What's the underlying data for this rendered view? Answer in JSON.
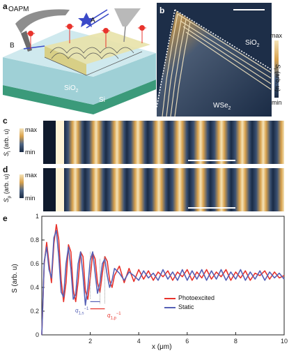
{
  "panel_labels": {
    "a": "a",
    "b": "b",
    "c": "c",
    "d": "d",
    "e": "e"
  },
  "panel_a": {
    "oapm": "OAPM",
    "beam_a": "A",
    "beam_b": "B",
    "sio2": "SiO",
    "sio2_sub": "2",
    "si": "Si"
  },
  "panel_b": {
    "sio2": "SiO",
    "sio2_sub": "2",
    "wse2": "WSe",
    "wse2_sub": "2",
    "cbar_max": "max",
    "cbar_min": "min",
    "cbar_label": "S",
    "cbar_label_sub": "I",
    "cbar_label_rest": " (arb. u)"
  },
  "panel_c": {
    "ylabel": "S",
    "ylabel_sub": "I",
    "ylabel_rest": " (arb. u)",
    "max": "max",
    "min": "min"
  },
  "panel_d": {
    "ylabel": "S",
    "ylabel_sub": "p",
    "ylabel_rest": " (arb. u)",
    "max": "max",
    "min": "min"
  },
  "colors": {
    "photoexcited": "#e8332c",
    "static": "#5560b5",
    "map_dark": "#1a2b45",
    "map_light": "#f4e3b8",
    "map_orange": "#d9a24d",
    "substrate_si": "#3b9a7a",
    "substrate_sio2": "#9fd0d6"
  },
  "chart_data": {
    "type": "line",
    "ylabel": "S (arb. u)",
    "xlabel": "x (μm)",
    "xlim": [
      0,
      10
    ],
    "ylim": [
      0,
      1
    ],
    "x_ticks": [
      "2",
      "4",
      "6",
      "8",
      "10"
    ],
    "y_ticks": [
      "0",
      "0.2",
      "0.4",
      "0.6",
      "0.8",
      "1"
    ],
    "series": [
      {
        "name": "Photoexcited",
        "x": [
          0.0,
          0.1,
          0.2,
          0.3,
          0.4,
          0.5,
          0.6,
          0.7,
          0.8,
          0.9,
          1.0,
          1.1,
          1.2,
          1.3,
          1.4,
          1.5,
          1.6,
          1.7,
          1.8,
          1.9,
          2.0,
          2.1,
          2.2,
          2.3,
          2.4,
          2.5,
          2.6,
          2.7,
          2.8,
          2.9,
          3.0,
          3.2,
          3.4,
          3.6,
          3.8,
          4.0,
          4.2,
          4.4,
          4.6,
          4.8,
          5.0,
          5.2,
          5.4,
          5.6,
          5.8,
          6.0,
          6.2,
          6.4,
          6.6,
          6.8,
          7.0,
          7.2,
          7.4,
          7.6,
          7.8,
          8.0,
          8.2,
          8.4,
          8.6,
          8.8,
          9.0,
          9.2,
          9.4,
          9.6,
          9.8,
          10.0
        ],
        "y": [
          0.0,
          0.6,
          0.78,
          0.6,
          0.44,
          0.77,
          0.93,
          0.8,
          0.46,
          0.28,
          0.44,
          0.76,
          0.7,
          0.38,
          0.28,
          0.45,
          0.7,
          0.66,
          0.37,
          0.3,
          0.48,
          0.69,
          0.64,
          0.44,
          0.36,
          0.52,
          0.66,
          0.62,
          0.46,
          0.4,
          0.5,
          0.58,
          0.44,
          0.56,
          0.45,
          0.55,
          0.47,
          0.54,
          0.46,
          0.53,
          0.49,
          0.54,
          0.46,
          0.53,
          0.49,
          0.55,
          0.46,
          0.53,
          0.48,
          0.55,
          0.47,
          0.53,
          0.49,
          0.55,
          0.46,
          0.53,
          0.48,
          0.54,
          0.46,
          0.52,
          0.5,
          0.54,
          0.47,
          0.53,
          0.48,
          0.5
        ]
      },
      {
        "name": "Static",
        "x": [
          0.0,
          0.1,
          0.2,
          0.3,
          0.4,
          0.5,
          0.6,
          0.7,
          0.8,
          0.9,
          1.0,
          1.1,
          1.2,
          1.3,
          1.4,
          1.5,
          1.6,
          1.7,
          1.8,
          1.9,
          2.0,
          2.1,
          2.2,
          2.3,
          2.4,
          2.5,
          2.6,
          2.7,
          2.8,
          2.9,
          3.0,
          3.2,
          3.4,
          3.6,
          3.8,
          4.0,
          4.2,
          4.4,
          4.6,
          4.8,
          5.0,
          5.2,
          5.4,
          5.6,
          5.8,
          6.0,
          6.2,
          6.4,
          6.6,
          6.8,
          7.0,
          7.2,
          7.4,
          7.6,
          7.8,
          8.0,
          8.2,
          8.4,
          8.6,
          8.8,
          9.0,
          9.2,
          9.4,
          9.6,
          9.8,
          10.0
        ],
        "y": [
          0.0,
          0.62,
          0.74,
          0.55,
          0.48,
          0.82,
          0.88,
          0.66,
          0.36,
          0.32,
          0.6,
          0.74,
          0.56,
          0.3,
          0.34,
          0.6,
          0.7,
          0.5,
          0.25,
          0.4,
          0.63,
          0.7,
          0.52,
          0.35,
          0.44,
          0.6,
          0.64,
          0.5,
          0.4,
          0.46,
          0.56,
          0.52,
          0.46,
          0.53,
          0.5,
          0.46,
          0.54,
          0.48,
          0.52,
          0.46,
          0.55,
          0.47,
          0.53,
          0.46,
          0.55,
          0.46,
          0.54,
          0.47,
          0.55,
          0.46,
          0.54,
          0.47,
          0.55,
          0.46,
          0.53,
          0.47,
          0.55,
          0.46,
          0.53,
          0.47,
          0.54,
          0.46,
          0.53,
          0.48,
          0.52,
          0.47
        ]
      }
    ],
    "legend": {
      "placement": "right",
      "entries": [
        "Photoexcited",
        "Static"
      ]
    },
    "annotations": {
      "q_static": "q",
      "q_static_sub": "1,s",
      "q_photo": "q",
      "q_photo_sub": "1,p",
      "exp": "−1"
    }
  }
}
